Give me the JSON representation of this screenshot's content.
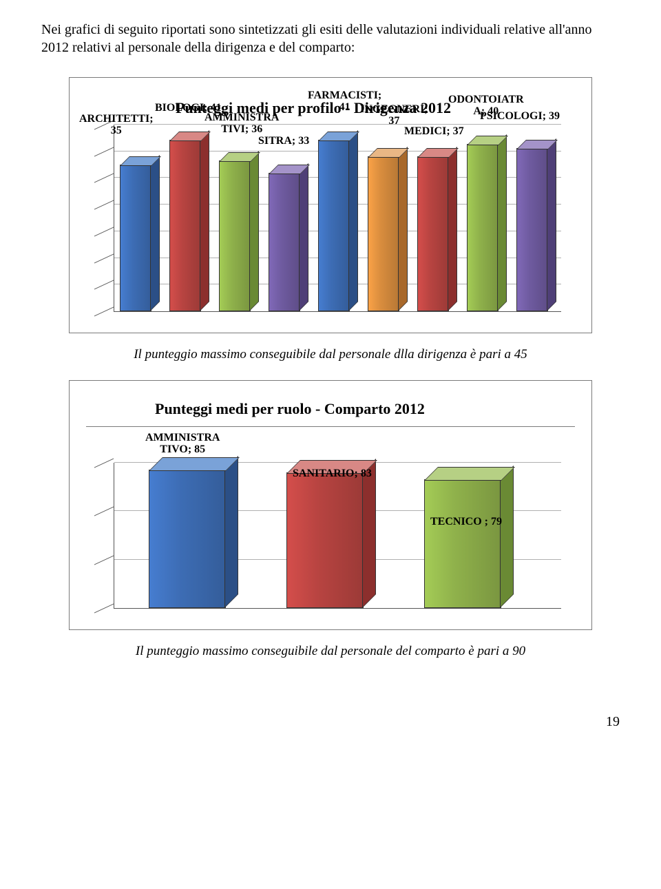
{
  "intro": "Nei grafici di seguito riportati sono sintetizzati gli esiti delle valutazioni individuali relative all'anno 2012 relativi al personale della dirigenza e del comparto:",
  "chart1": {
    "title": "Punteggi medi per profilo - Dirigenza 2012",
    "ymax": 45,
    "gridlines": 7,
    "labels": {
      "architetti": "ARCHITETTI;\n35",
      "biologi": "BIOLOGI; 41",
      "amministrativi": "AMMINISTRA\nTIVI; 36",
      "sitra": "SITRA; 33",
      "farmacisti": "FARMACISTI;\n41",
      "ingegneri": "INGEGNERI;\n37",
      "medici": "MEDICI; 37",
      "odontoiatra": "ODONTOIATR\nA; 40",
      "psicologi": "PSICOLOGI; 39"
    },
    "bars": [
      {
        "value": 35,
        "front": "#3d6db5",
        "top": "#7aa2d8",
        "side": "#2b4f86"
      },
      {
        "value": 41,
        "front": "#b84441",
        "top": "#d88885",
        "side": "#8c2f2d"
      },
      {
        "value": 36,
        "front": "#8fb14b",
        "top": "#b6d084",
        "side": "#6a8a34"
      },
      {
        "value": 33,
        "front": "#6f5ba0",
        "top": "#a493c9",
        "side": "#4f3f77"
      },
      {
        "value": 41,
        "front": "#3d6db5",
        "top": "#7aa2d8",
        "side": "#2b4f86"
      },
      {
        "value": 37,
        "front": "#d98d3e",
        "top": "#e9b785",
        "side": "#a8682a"
      },
      {
        "value": 37,
        "front": "#b84441",
        "top": "#d88885",
        "side": "#8c2f2d"
      },
      {
        "value": 40,
        "front": "#8fb14b",
        "top": "#b6d084",
        "side": "#6a8a34"
      },
      {
        "value": 39,
        "front": "#6f5ba0",
        "top": "#a493c9",
        "side": "#4f3f77"
      }
    ],
    "caption": "Il punteggio massimo conseguibile dal personale dlla dirigenza è pari a 45"
  },
  "chart2": {
    "title": "Punteggi medi per ruolo - Comparto 2012",
    "ymax": 90,
    "gridlines": 3,
    "labels": {
      "amministrativo": "AMMINISTRA\nTIVO; 85",
      "sanitario": "SANITARIO; 83",
      "tecnico": "TECNICO ; 79"
    },
    "bars": [
      {
        "value": 85,
        "front": "#3d6db5",
        "top": "#7aa2d8",
        "side": "#2b4f86"
      },
      {
        "value": 83,
        "front": "#b84441",
        "top": "#d88885",
        "side": "#8c2f2d"
      },
      {
        "value": 79,
        "front": "#8fb14b",
        "top": "#b6d084",
        "side": "#6a8a34"
      }
    ],
    "caption": "Il punteggio massimo conseguibile dal personale del comparto è pari a 90"
  },
  "pagenum": "19"
}
